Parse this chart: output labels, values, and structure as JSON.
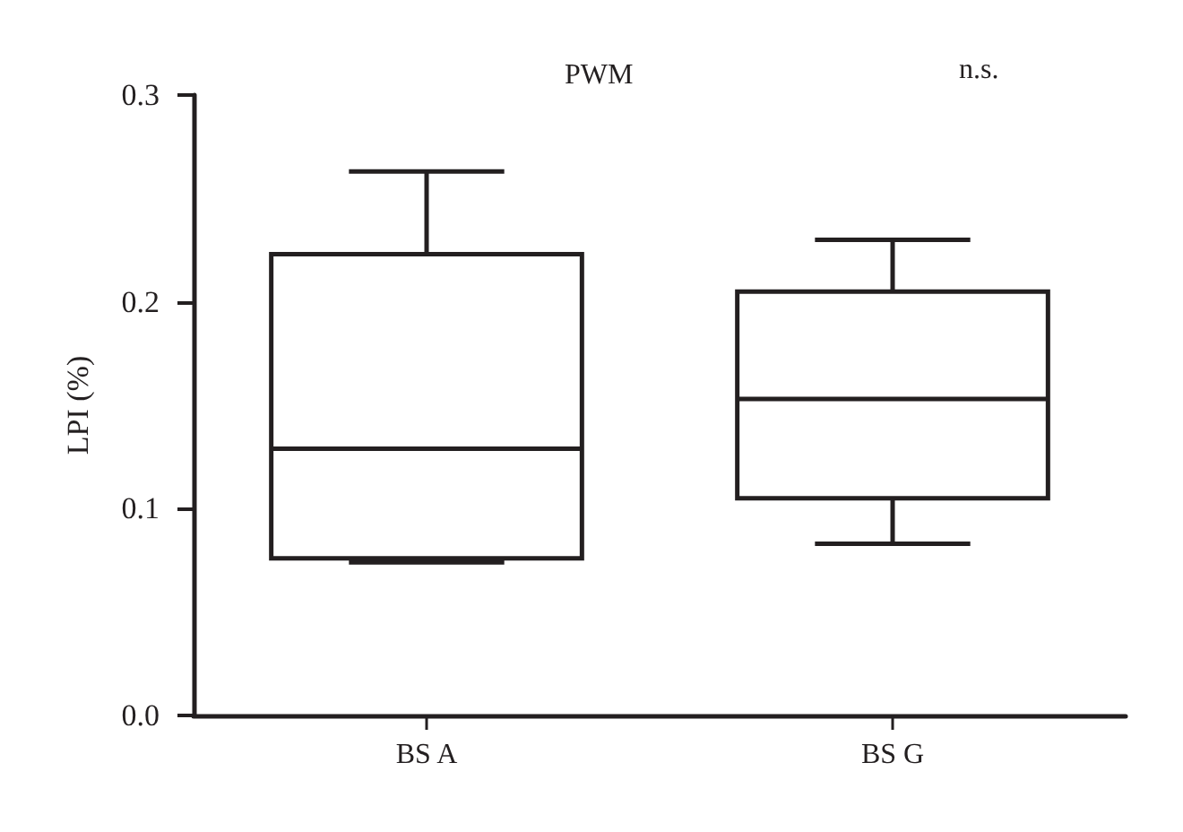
{
  "chart_data": {
    "type": "box",
    "title": "PWM",
    "ylabel": "LPI (%)",
    "categories": [
      "BS A",
      "BS G"
    ],
    "boxes": [
      {
        "low": 0.074,
        "q1": 0.076,
        "median": 0.129,
        "q3": 0.223,
        "high": 0.263
      },
      {
        "low": 0.083,
        "q1": 0.105,
        "median": 0.153,
        "q3": 0.205,
        "high": 0.23
      }
    ],
    "color": "#231f20",
    "ylim": [
      0,
      0.3
    ],
    "yticks": [
      {
        "value": 0,
        "label": "0.0"
      },
      0.1,
      0.2,
      0.3
    ],
    "annotations": [
      "n.s."
    ]
  }
}
